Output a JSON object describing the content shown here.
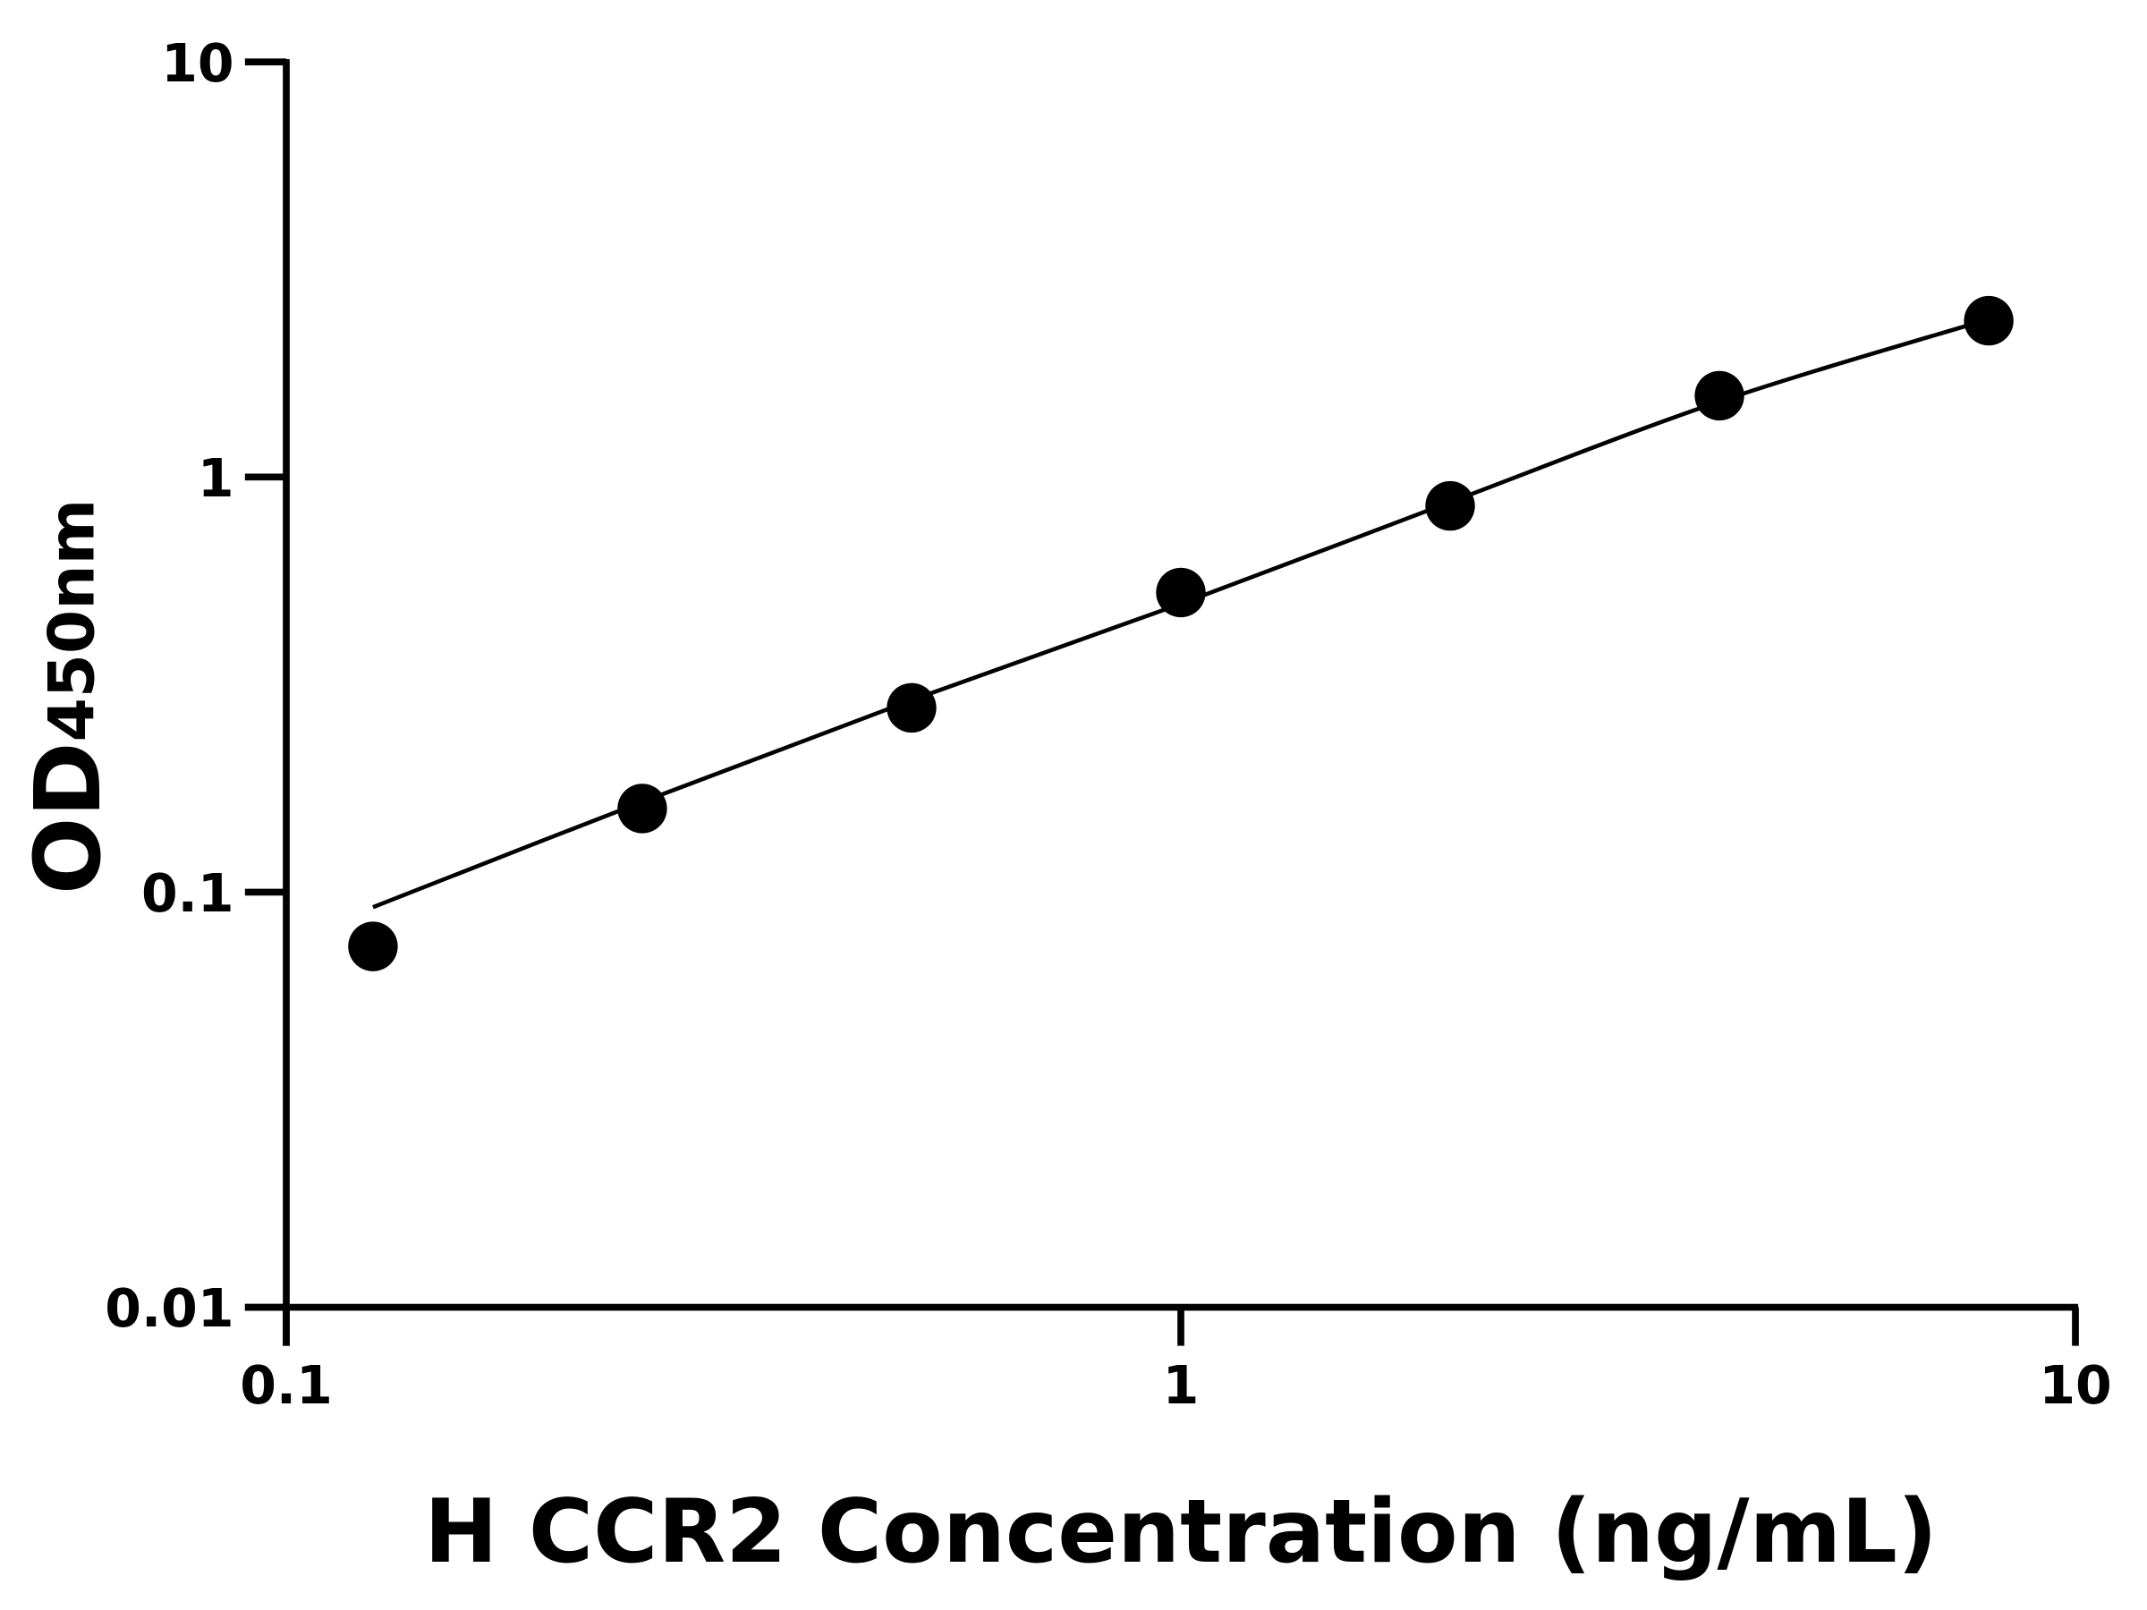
{
  "chart_data": {
    "type": "scatter",
    "xlabel": "H CCR2 Concentration (ng/mL)",
    "ylabel_main": "OD",
    "ylabel_sub": "450nm",
    "xscale": "log",
    "yscale": "log",
    "xlim": [
      0.1,
      10
    ],
    "ylim": [
      0.01,
      10
    ],
    "xticks": [
      "0.1",
      "1",
      "10"
    ],
    "yticks": [
      "0.01",
      "0.1",
      "1",
      "10"
    ],
    "grid": false,
    "legend": "none",
    "points": {
      "x": [
        0.125,
        0.25,
        0.5,
        1,
        2,
        4,
        8
      ],
      "y": [
        0.074,
        0.159,
        0.278,
        0.527,
        0.852,
        1.57,
        2.38
      ]
    },
    "fit_curve": {
      "x": [
        0.125,
        0.25,
        0.5,
        1,
        2,
        4,
        8
      ],
      "y": [
        0.092,
        0.165,
        0.29,
        0.495,
        0.87,
        1.52,
        2.4
      ]
    },
    "colors": {
      "points": "#000000",
      "line": "#000000",
      "axes": "#000000"
    }
  }
}
